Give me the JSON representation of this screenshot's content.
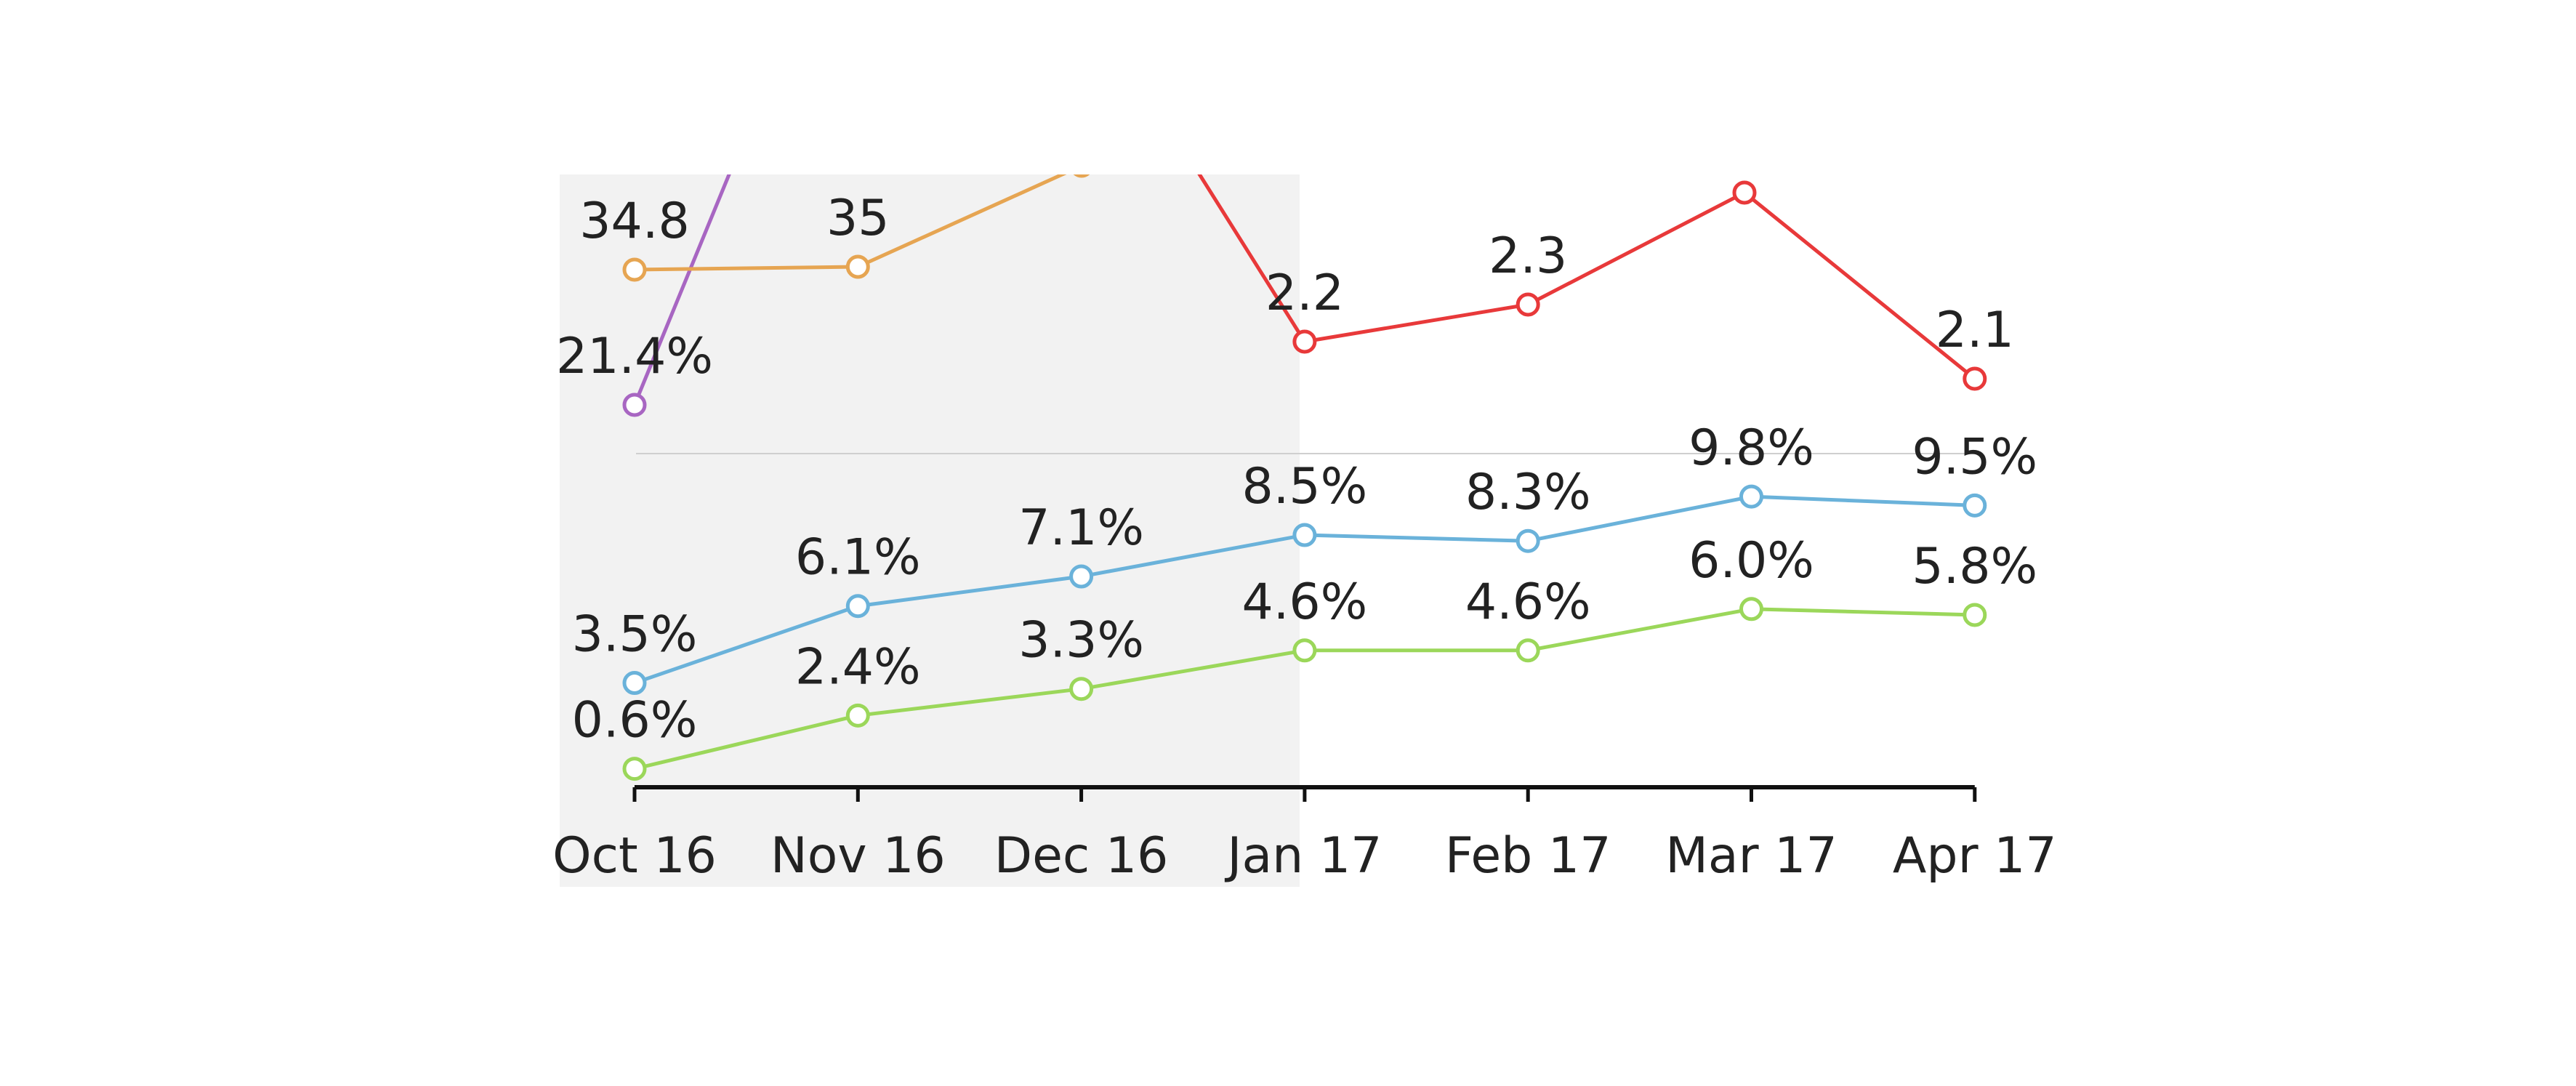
{
  "chart_data": {
    "type": "line",
    "categories": [
      "Oct 16",
      "Nov 16",
      "Dec 16",
      "Jan 17",
      "Feb 17",
      "Mar 17",
      "Apr 17"
    ],
    "shaded_region": {
      "from": "Oct 16",
      "to": "Jan 17"
    },
    "grid": false,
    "legend": "none",
    "series": [
      {
        "key": "green",
        "color": "#9bd75a",
        "scale": "bottom",
        "values": [
          0.6,
          2.4,
          3.3,
          4.6,
          4.6,
          6.0,
          5.8
        ],
        "labels": [
          "0.6%",
          "2.4%",
          "3.3%",
          "4.6%",
          "4.6%",
          "6.0%",
          "5.8%"
        ]
      },
      {
        "key": "blue",
        "color": "#6ab2da",
        "scale": "bottom",
        "values": [
          3.5,
          6.1,
          7.1,
          8.5,
          8.3,
          9.8,
          9.5
        ],
        "labels": [
          "3.5%",
          "6.1%",
          "7.1%",
          "8.5%",
          "8.3%",
          "9.8%",
          "9.5%"
        ]
      },
      {
        "key": "purple",
        "color": "#a866c2",
        "scale": "top",
        "values": [
          21.4,
          null,
          null,
          null,
          null,
          null,
          null
        ],
        "labels": [
          "21.4%",
          null,
          null,
          null,
          null,
          null,
          null
        ]
      },
      {
        "key": "orange",
        "color": "#e6a552",
        "scale": "top",
        "values": [
          34.8,
          35,
          null,
          null,
          null,
          null,
          null
        ],
        "labels": [
          "34.8",
          "35",
          null,
          null,
          null,
          null,
          null
        ]
      },
      {
        "key": "red",
        "color": "#e8393a",
        "scale": "top",
        "values": [
          null,
          null,
          null,
          2.2,
          2.3,
          null,
          2.1
        ],
        "labels": [
          null,
          null,
          null,
          "2.2",
          "2.3",
          null,
          "2.1"
        ]
      }
    ]
  }
}
